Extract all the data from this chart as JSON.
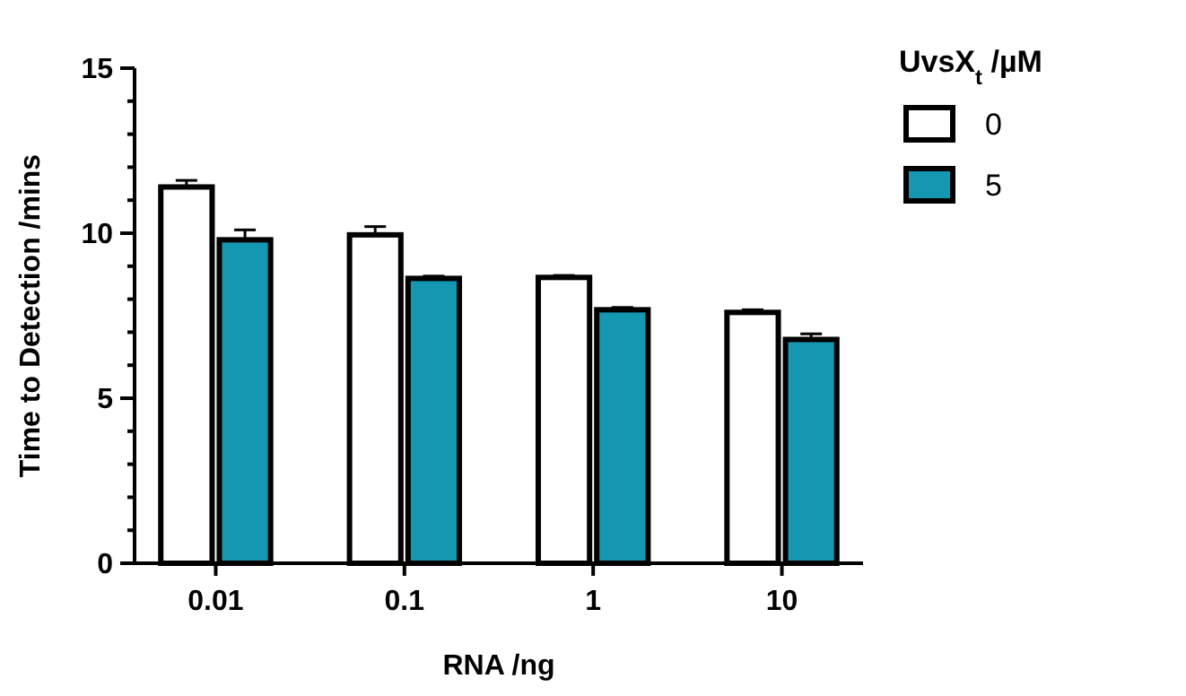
{
  "chart_data": {
    "type": "bar",
    "xlabel": "RNA /ng",
    "ylabel": "Time to Detection /mins",
    "legend_title": "UvsX$_{t}$ /µM",
    "categories": [
      "0.01",
      "0.1",
      "1",
      "10"
    ],
    "series": [
      {
        "name": "0",
        "color": "#ffffff",
        "values": [
          11.4,
          9.95,
          8.66,
          7.6
        ],
        "errors": [
          0.2,
          0.25,
          0.06,
          0.08
        ]
      },
      {
        "name": "5",
        "color": "#1497b0",
        "values": [
          9.8,
          8.63,
          7.68,
          6.78
        ],
        "errors": [
          0.3,
          0.07,
          0.07,
          0.17
        ]
      }
    ],
    "ylim": [
      0,
      15
    ],
    "yticks": [
      0,
      {
        "value": 1,
        "label": null
      },
      {
        "value": 2,
        "label": null
      },
      {
        "value": 3,
        "label": null
      },
      {
        "value": 4,
        "label": null
      },
      5,
      {
        "value": 6,
        "label": null
      },
      {
        "value": 7,
        "label": null
      },
      {
        "value": 8,
        "label": null
      },
      {
        "value": 9,
        "label": null
      },
      10,
      {
        "value": 11,
        "label": null
      },
      {
        "value": 12,
        "label": null
      },
      {
        "value": 13,
        "label": null
      },
      {
        "value": 14,
        "label": null
      },
      15
    ],
    "legend": "top right",
    "grid": false
  }
}
